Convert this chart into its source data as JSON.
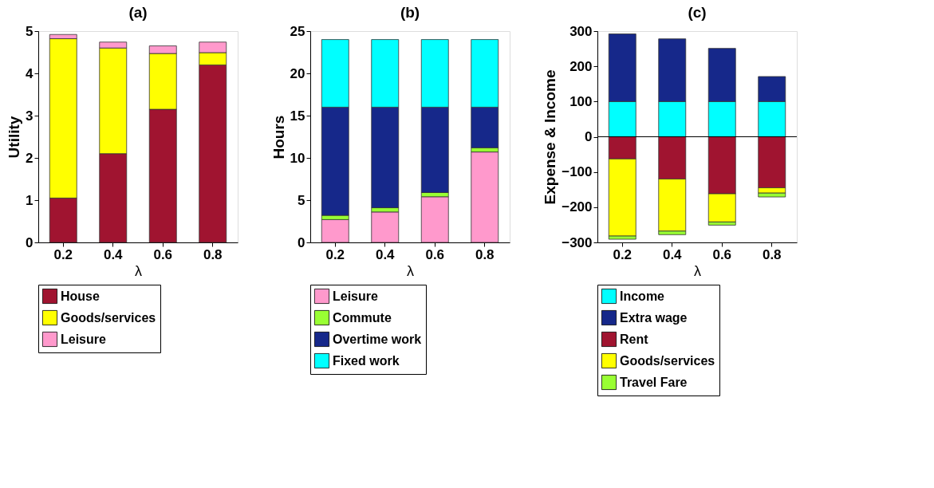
{
  "chart_data": [
    {
      "type": "bar",
      "stacked": true,
      "title": "(a)",
      "xlabel": "λ",
      "ylabel": "Utility",
      "categories": [
        "0.2",
        "0.4",
        "0.6",
        "0.8"
      ],
      "ylim": [
        0,
        5
      ],
      "yticks": [
        0,
        1,
        2,
        3,
        4,
        5
      ],
      "grid": false,
      "legend": "bottom",
      "series": [
        {
          "name": "House",
          "color": "#a01430",
          "values": [
            1.05,
            2.1,
            3.15,
            4.2
          ]
        },
        {
          "name": "Goods/services",
          "color": "#ffff00",
          "values": [
            3.77,
            2.5,
            1.32,
            0.29
          ]
        },
        {
          "name": "Leisure",
          "color": "#ff99cc",
          "values": [
            0.1,
            0.14,
            0.18,
            0.25
          ]
        }
      ]
    },
    {
      "type": "bar",
      "stacked": true,
      "title": "(b)",
      "xlabel": "λ",
      "ylabel": "Hours",
      "categories": [
        "0.2",
        "0.4",
        "0.6",
        "0.8"
      ],
      "ylim": [
        0,
        25
      ],
      "yticks": [
        0,
        5,
        10,
        15,
        20,
        25
      ],
      "grid": false,
      "legend": "bottom",
      "series": [
        {
          "name": "Leisure",
          "color": "#ff99cc",
          "values": [
            2.7,
            3.6,
            5.4,
            10.7
          ]
        },
        {
          "name": "Commute",
          "color": "#99ff33",
          "values": [
            0.5,
            0.5,
            0.5,
            0.5
          ]
        },
        {
          "name": "Overtime work",
          "color": "#16288a",
          "values": [
            12.8,
            11.9,
            10.1,
            4.8
          ]
        },
        {
          "name": "Fixed work",
          "color": "#00ffff",
          "values": [
            8,
            8,
            8,
            8
          ]
        }
      ]
    },
    {
      "type": "bar",
      "stacked": true,
      "title": "(c)",
      "xlabel": "λ",
      "ylabel": "Expense & Income",
      "categories": [
        "0.2",
        "0.4",
        "0.6",
        "0.8"
      ],
      "ylim": [
        -300,
        300
      ],
      "yticks": [
        -300,
        -200,
        -100,
        0,
        100,
        200,
        300
      ],
      "grid": false,
      "legend": "bottom",
      "ref_lines": [
        {
          "axis": "y",
          "value": 0,
          "color": "#000000"
        }
      ],
      "series": [
        {
          "name": "Income",
          "color": "#00ffff",
          "values": [
            100,
            100,
            100,
            100
          ]
        },
        {
          "name": "Extra wage",
          "color": "#16288a",
          "values": [
            192,
            178,
            151,
            71
          ]
        },
        {
          "name": "Rent",
          "color": "#a01430",
          "values": [
            -63,
            -120,
            -162,
            -145
          ]
        },
        {
          "name": "Goods/services",
          "color": "#ffff00",
          "values": [
            -219,
            -148,
            -80,
            -15
          ]
        },
        {
          "name": "Travel Fare",
          "color": "#99ff33",
          "values": [
            -9,
            -10,
            -9,
            -11
          ]
        }
      ]
    }
  ]
}
